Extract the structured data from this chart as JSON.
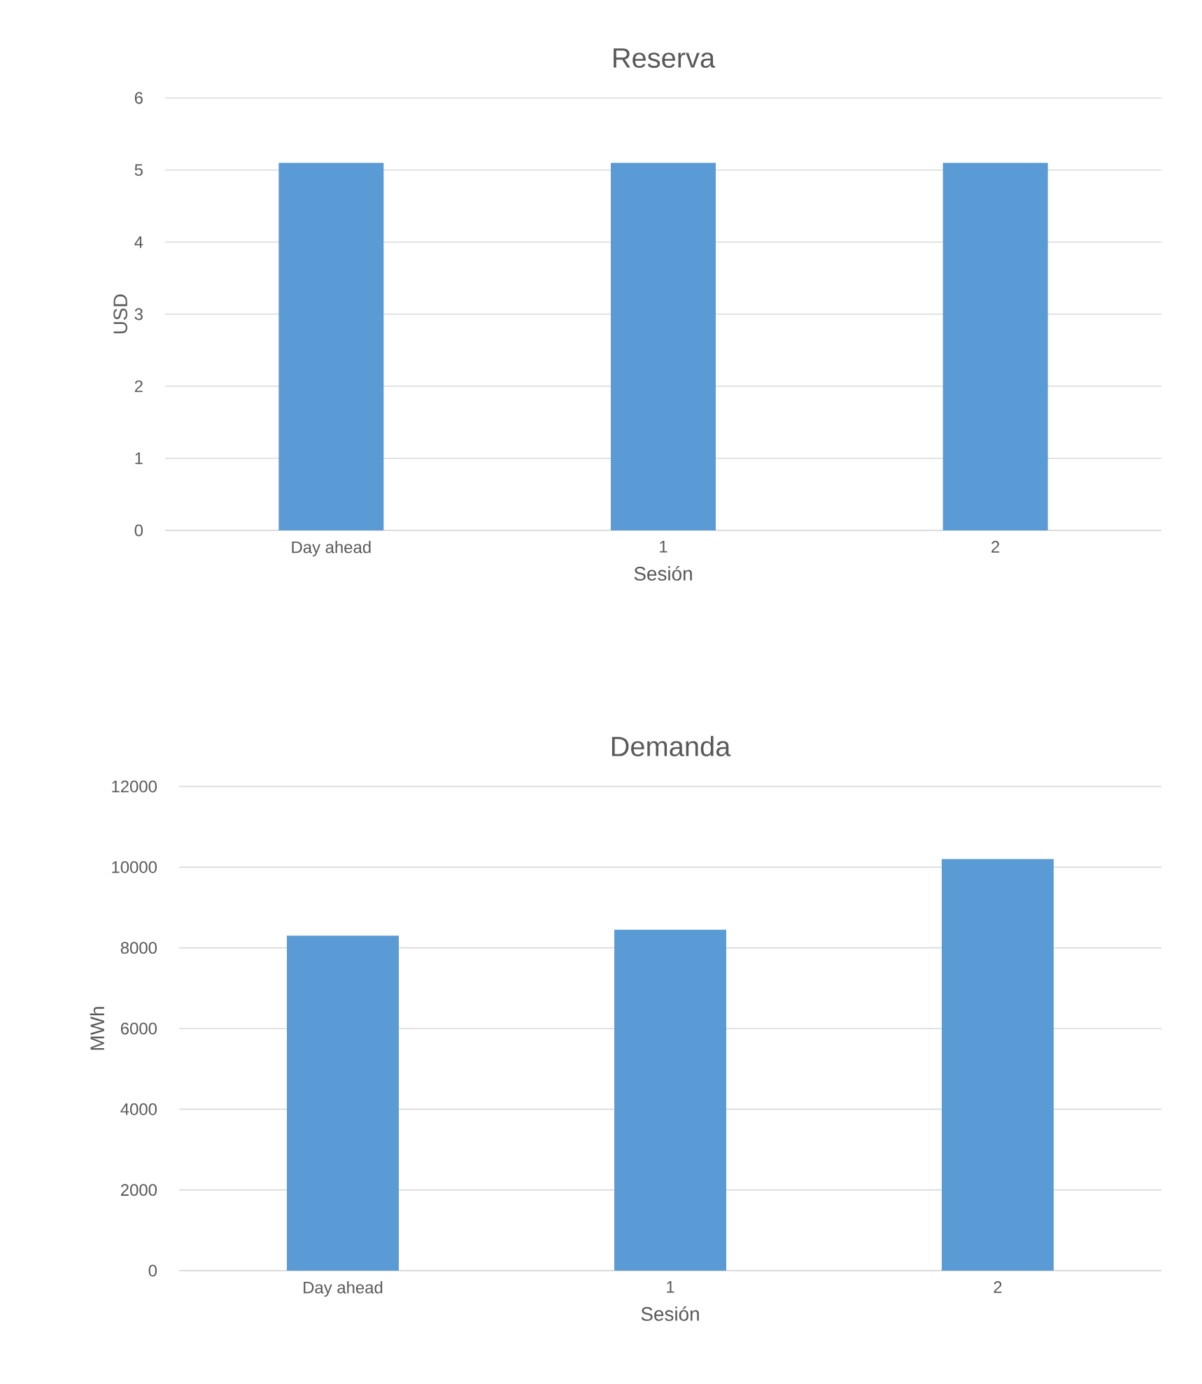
{
  "chart_data": [
    {
      "type": "bar",
      "title": "Reserva",
      "xlabel": "Sesión",
      "ylabel": "USD",
      "categories": [
        "Day ahead",
        "1",
        "2"
      ],
      "values": [
        5.1,
        5.1,
        5.1
      ],
      "color": "#5b9bd5",
      "ylim": [
        0,
        6
      ],
      "yticks": [
        0,
        1,
        2,
        3,
        4,
        5,
        6
      ],
      "grid": "y"
    },
    {
      "type": "bar",
      "title": "Demanda",
      "xlabel": "Sesión",
      "ylabel": "MWh",
      "categories": [
        "Day ahead",
        "1",
        "2"
      ],
      "values": [
        8300,
        8450,
        10200
      ],
      "color": "#5b9bd5",
      "ylim": [
        0,
        12000
      ],
      "yticks": [
        0,
        2000,
        4000,
        6000,
        8000,
        10000,
        12000
      ],
      "grid": "y"
    }
  ]
}
